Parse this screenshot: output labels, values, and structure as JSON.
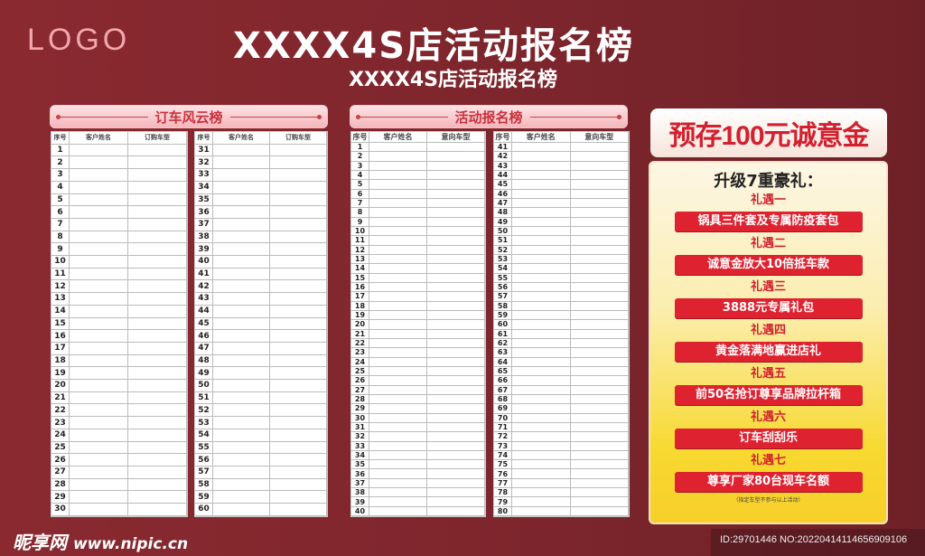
{
  "logo": "LOGO",
  "title": "XXXX4S店活动报名榜",
  "subtitle": "XXXX4S店活动报名榜",
  "sections": [
    {
      "banner": "订车风云榜",
      "tables": [
        {
          "headers": [
            "序号",
            "客户姓名",
            "订购车型"
          ],
          "rows": [
            1,
            2,
            3,
            4,
            5,
            6,
            7,
            8,
            9,
            10,
            11,
            12,
            13,
            14,
            15,
            16,
            17,
            18,
            19,
            20,
            21,
            22,
            23,
            24,
            25,
            26,
            27,
            28,
            29,
            30
          ]
        },
        {
          "headers": [
            "序号",
            "客户姓名",
            "订购车型"
          ],
          "rows": [
            31,
            32,
            33,
            34,
            35,
            36,
            37,
            38,
            39,
            40,
            41,
            42,
            43,
            44,
            45,
            46,
            47,
            48,
            49,
            50,
            51,
            52,
            53,
            54,
            55,
            56,
            57,
            58,
            59,
            60
          ]
        }
      ]
    },
    {
      "banner": "活动报名榜",
      "tables": [
        {
          "headers": [
            "序号",
            "客户姓名",
            "意向车型"
          ],
          "rows": [
            1,
            2,
            3,
            4,
            5,
            6,
            7,
            8,
            9,
            10,
            11,
            12,
            13,
            14,
            15,
            16,
            17,
            18,
            19,
            20,
            21,
            22,
            23,
            24,
            25,
            26,
            27,
            28,
            29,
            30,
            31,
            32,
            33,
            34,
            35,
            36,
            37,
            38,
            39,
            40
          ]
        },
        {
          "headers": [
            "序号",
            "客户姓名",
            "意向车型"
          ],
          "rows": [
            41,
            42,
            43,
            44,
            45,
            46,
            47,
            48,
            49,
            50,
            51,
            52,
            53,
            54,
            55,
            56,
            57,
            58,
            59,
            60,
            61,
            62,
            63,
            64,
            65,
            66,
            67,
            68,
            69,
            70,
            71,
            72,
            73,
            74,
            75,
            76,
            77,
            78,
            79,
            80
          ]
        }
      ]
    }
  ],
  "promo": {
    "banner": "预存100元诚意金",
    "heading": "升级7重豪礼：",
    "gifts": [
      {
        "label": "礼遇一",
        "text": "锅具三件套及专属防疫套包"
      },
      {
        "label": "礼遇二",
        "text": "诚意金放大10倍抵车款"
      },
      {
        "label": "礼遇三",
        "text": "3888元专属礼包"
      },
      {
        "label": "礼遇四",
        "text": "黄金落满地赢进店礼"
      },
      {
        "label": "礼遇五",
        "text": "前50名抢订尊享品牌拉杆箱"
      },
      {
        "label": "礼遇六",
        "text": "订车刮刮乐"
      },
      {
        "label": "礼遇七",
        "text": "尊享厂家80台现车名额"
      }
    ],
    "note": "（指定车型不参与以上活动）"
  },
  "watermark": {
    "brand": "昵享网",
    "url": "www.nipic.cn",
    "id": "ID:29701446 NO:20220414114656909106"
  },
  "colors": {
    "background": "#8a2930",
    "accent": "#de2230",
    "panel": "#f7d930"
  }
}
